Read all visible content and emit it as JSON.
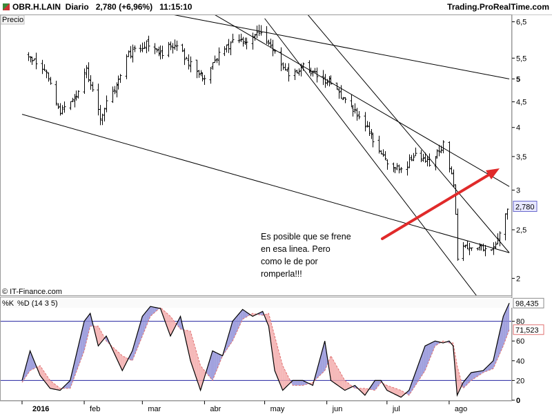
{
  "header": {
    "symbol": "OBR.H.LAIN",
    "period": "Diario",
    "price": "2,780 (+6,96%)",
    "time": "11:15:10",
    "source": "Trading.ProRealTime.com"
  },
  "price_panel": {
    "label": "Precio",
    "credit": "© IT-Finance.com",
    "last_price_label": "2,780",
    "annotation": [
      "Es posible que se frene",
      "en esa linea. Pero",
      "como le de por",
      "romperla!!!"
    ]
  },
  "stoch_panel": {
    "label_k": "%K",
    "label_d": "%D (14 3 5)",
    "k_value_label": "98,435",
    "d_value_label": "71,523"
  },
  "colors": {
    "k_line": "#000000",
    "d_line": "#e07070",
    "fill_up": "#8a8ad6",
    "fill_down": "#f2a6a6",
    "level_lines": "#2323a0",
    "arrow": "#e02a2a",
    "last_price_box": "#e8e8ff"
  },
  "chart_data": [
    {
      "type": "bar",
      "title": "OBR.H.LAIN Diario",
      "xlabel": "",
      "ylabel": "Precio",
      "y_scale": "log",
      "ylim": [
        1.85,
        6.7
      ],
      "x_tick_labels": [
        "2016",
        "feb",
        "mar",
        "abr",
        "may",
        "jun",
        "jul",
        "ago"
      ],
      "y_ticks": [
        6.5,
        5.5,
        5,
        4.5,
        4,
        3.5,
        3,
        2.5,
        2
      ],
      "y_tick_labels": [
        "6,5",
        "5,5",
        "5",
        "4,5",
        "4",
        "3,5",
        "3",
        "2,5",
        "2"
      ],
      "close_keypoints": [
        [
          "2016-01-04",
          5.6
        ],
        [
          "2016-01-12",
          5.2
        ],
        [
          "2016-01-20",
          4.3
        ],
        [
          "2016-01-28",
          4.6
        ],
        [
          "2016-02-02",
          5.2
        ],
        [
          "2016-02-09",
          4.2
        ],
        [
          "2016-02-16",
          4.8
        ],
        [
          "2016-02-23",
          5.6
        ],
        [
          "2016-03-03",
          5.9
        ],
        [
          "2016-03-10",
          5.6
        ],
        [
          "2016-03-17",
          5.9
        ],
        [
          "2016-03-24",
          5.4
        ],
        [
          "2016-03-31",
          5.0
        ],
        [
          "2016-04-08",
          5.6
        ],
        [
          "2016-04-15",
          5.9
        ],
        [
          "2016-04-22",
          6.0
        ],
        [
          "2016-04-29",
          6.2
        ],
        [
          "2016-05-06",
          5.6
        ],
        [
          "2016-05-13",
          5.1
        ],
        [
          "2016-05-20",
          5.3
        ],
        [
          "2016-05-27",
          5.1
        ],
        [
          "2016-06-03",
          4.9
        ],
        [
          "2016-06-10",
          4.5
        ],
        [
          "2016-06-17",
          4.2
        ],
        [
          "2016-06-24",
          3.8
        ],
        [
          "2016-07-01",
          3.4
        ],
        [
          "2016-07-08",
          3.3
        ],
        [
          "2016-07-15",
          3.5
        ],
        [
          "2016-07-22",
          3.4
        ],
        [
          "2016-07-29",
          3.7
        ],
        [
          "2016-08-03",
          3.1
        ],
        [
          "2016-08-05",
          2.2
        ],
        [
          "2016-08-08",
          2.3
        ],
        [
          "2016-08-15",
          2.32
        ],
        [
          "2016-08-22",
          2.25
        ],
        [
          "2016-08-26",
          2.45
        ],
        [
          "2016-08-30",
          2.78
        ]
      ],
      "trendlines": [
        {
          "from": [
            "2016-01-01",
            4.25
          ],
          "to": [
            "2016-08-31",
            2.25
          ]
        },
        {
          "from": [
            "2016-03-01",
            6.9
          ],
          "to": [
            "2016-08-31",
            5.0
          ]
        },
        {
          "from": [
            "2016-04-01",
            6.9
          ],
          "to": [
            "2016-08-31",
            3.05
          ]
        },
        {
          "from": [
            "2016-05-01",
            6.6
          ],
          "to": [
            "2016-08-24",
            1.65
          ]
        },
        {
          "from": [
            "2016-05-20",
            6.9
          ],
          "to": [
            "2016-08-31",
            2.25
          ]
        }
      ]
    },
    {
      "type": "line",
      "title": "%K %D (14 3 5)",
      "ylim": [
        0,
        100
      ],
      "y_ticks": [
        0,
        20,
        40,
        60,
        80
      ],
      "y_tick_labels": [
        "0",
        "20",
        "40",
        "60",
        "80"
      ],
      "levels": [
        20,
        80
      ],
      "series": [
        {
          "name": "%K",
          "keypoints": [
            [
              "2016-01-01",
              20
            ],
            [
              "2016-01-05",
              50
            ],
            [
              "2016-01-10",
              25
            ],
            [
              "2016-01-15",
              12
            ],
            [
              "2016-01-20",
              10
            ],
            [
              "2016-01-25",
              20
            ],
            [
              "2016-02-01",
              80
            ],
            [
              "2016-02-04",
              88
            ],
            [
              "2016-02-08",
              55
            ],
            [
              "2016-02-12",
              65
            ],
            [
              "2016-02-20",
              30
            ],
            [
              "2016-02-25",
              50
            ],
            [
              "2016-03-01",
              85
            ],
            [
              "2016-03-05",
              95
            ],
            [
              "2016-03-10",
              93
            ],
            [
              "2016-03-15",
              65
            ],
            [
              "2016-03-20",
              85
            ],
            [
              "2016-03-25",
              40
            ],
            [
              "2016-03-30",
              10
            ],
            [
              "2016-04-05",
              50
            ],
            [
              "2016-04-10",
              45
            ],
            [
              "2016-04-15",
              80
            ],
            [
              "2016-04-20",
              92
            ],
            [
              "2016-04-25",
              85
            ],
            [
              "2016-04-30",
              90
            ],
            [
              "2016-05-03",
              75
            ],
            [
              "2016-05-06",
              30
            ],
            [
              "2016-05-10",
              10
            ],
            [
              "2016-05-15",
              20
            ],
            [
              "2016-05-20",
              20
            ],
            [
              "2016-05-25",
              15
            ],
            [
              "2016-05-31",
              60
            ],
            [
              "2016-06-03",
              20
            ],
            [
              "2016-06-10",
              10
            ],
            [
              "2016-06-15",
              15
            ],
            [
              "2016-06-20",
              5
            ],
            [
              "2016-06-25",
              20
            ],
            [
              "2016-06-28",
              20
            ],
            [
              "2016-07-01",
              10
            ],
            [
              "2016-07-08",
              3
            ],
            [
              "2016-07-12",
              10
            ],
            [
              "2016-07-20",
              55
            ],
            [
              "2016-07-25",
              60
            ],
            [
              "2016-07-29",
              58
            ],
            [
              "2016-08-01",
              60
            ],
            [
              "2016-08-03",
              55
            ],
            [
              "2016-08-05",
              5
            ],
            [
              "2016-08-08",
              18
            ],
            [
              "2016-08-12",
              28
            ],
            [
              "2016-08-18",
              30
            ],
            [
              "2016-08-23",
              40
            ],
            [
              "2016-08-28",
              85
            ],
            [
              "2016-08-31",
              98.4
            ]
          ]
        },
        {
          "name": "%D",
          "keypoints": [
            [
              "2016-01-01",
              18
            ],
            [
              "2016-01-05",
              30
            ],
            [
              "2016-01-10",
              35
            ],
            [
              "2016-01-15",
              20
            ],
            [
              "2016-01-20",
              12
            ],
            [
              "2016-01-25",
              12
            ],
            [
              "2016-02-01",
              50
            ],
            [
              "2016-02-04",
              75
            ],
            [
              "2016-02-08",
              75
            ],
            [
              "2016-02-12",
              60
            ],
            [
              "2016-02-20",
              45
            ],
            [
              "2016-02-25",
              40
            ],
            [
              "2016-03-01",
              65
            ],
            [
              "2016-03-05",
              85
            ],
            [
              "2016-03-10",
              94
            ],
            [
              "2016-03-15",
              85
            ],
            [
              "2016-03-20",
              72
            ],
            [
              "2016-03-25",
              70
            ],
            [
              "2016-03-30",
              35
            ],
            [
              "2016-04-05",
              20
            ],
            [
              "2016-04-10",
              45
            ],
            [
              "2016-04-15",
              60
            ],
            [
              "2016-04-20",
              82
            ],
            [
              "2016-04-25",
              88
            ],
            [
              "2016-04-30",
              86
            ],
            [
              "2016-05-03",
              88
            ],
            [
              "2016-05-06",
              65
            ],
            [
              "2016-05-10",
              35
            ],
            [
              "2016-05-15",
              15
            ],
            [
              "2016-05-20",
              15
            ],
            [
              "2016-05-25",
              18
            ],
            [
              "2016-05-31",
              30
            ],
            [
              "2016-06-03",
              45
            ],
            [
              "2016-06-10",
              20
            ],
            [
              "2016-06-15",
              12
            ],
            [
              "2016-06-20",
              12
            ],
            [
              "2016-06-25",
              10
            ],
            [
              "2016-06-28",
              18
            ],
            [
              "2016-07-01",
              15
            ],
            [
              "2016-07-08",
              10
            ],
            [
              "2016-07-12",
              5
            ],
            [
              "2016-07-20",
              30
            ],
            [
              "2016-07-25",
              55
            ],
            [
              "2016-07-29",
              60
            ],
            [
              "2016-08-01",
              58
            ],
            [
              "2016-08-03",
              58
            ],
            [
              "2016-08-05",
              35
            ],
            [
              "2016-08-08",
              12
            ],
            [
              "2016-08-12",
              20
            ],
            [
              "2016-08-18",
              28
            ],
            [
              "2016-08-23",
              32
            ],
            [
              "2016-08-28",
              55
            ],
            [
              "2016-08-31",
              71.5
            ]
          ]
        }
      ]
    }
  ]
}
